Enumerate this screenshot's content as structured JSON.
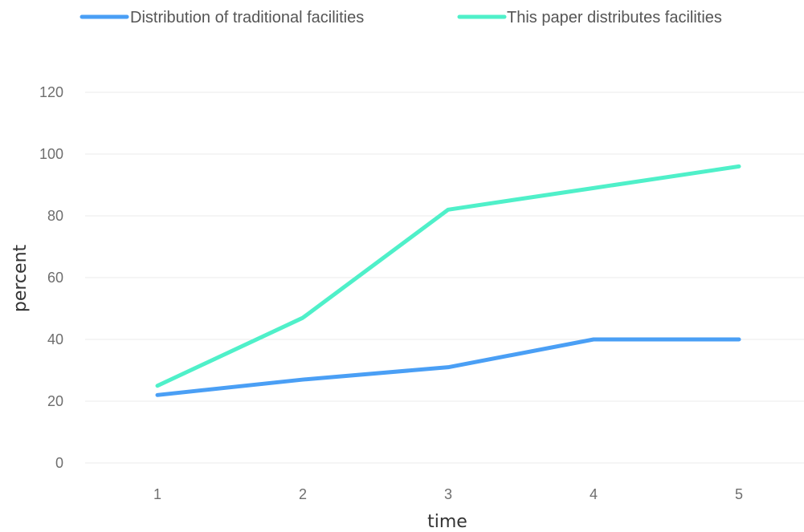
{
  "chart_data": {
    "type": "line",
    "categories": [
      "1",
      "2",
      "3",
      "4",
      "5"
    ],
    "xlabel": "time",
    "ylabel": "percent",
    "ylim": [
      0,
      120
    ],
    "yticks": [
      0,
      20,
      40,
      60,
      80,
      100,
      120
    ],
    "grid": true,
    "legend_placement": "top",
    "series": [
      {
        "name": "Distribution of traditional facilities",
        "color": "#4a9ff5",
        "values": [
          22,
          27,
          31,
          40,
          40
        ]
      },
      {
        "name": "This paper distributes facilities",
        "color": "#4ff0c9",
        "values": [
          25,
          47,
          82,
          89,
          96
        ]
      }
    ]
  }
}
